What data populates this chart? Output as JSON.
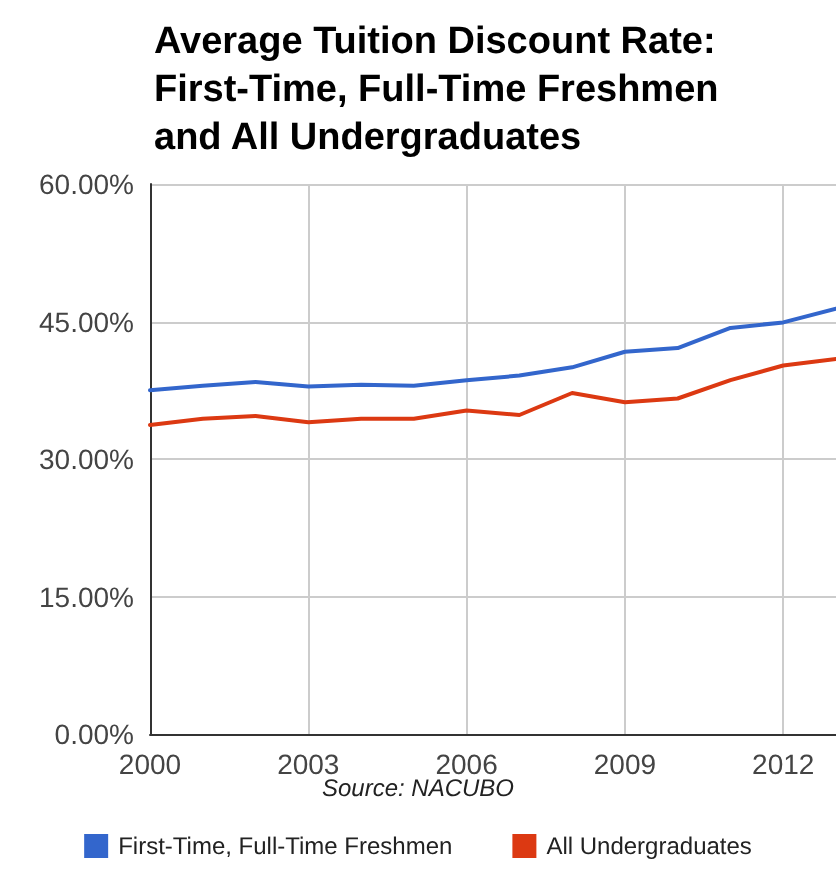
{
  "chart_data": {
    "type": "line",
    "title": "Average Tuition Discount Rate:\nFirst-Time, Full-Time Freshmen\nand All Undergraduates",
    "x": [
      2000,
      2001,
      2002,
      2003,
      2004,
      2005,
      2006,
      2007,
      2008,
      2009,
      2010,
      2011,
      2012,
      2013
    ],
    "series": [
      {
        "name": "First-Time, Full-Time Freshmen",
        "color": "#3366cc",
        "values": [
          37.5,
          38.0,
          38.4,
          37.9,
          38.1,
          38.0,
          38.6,
          39.1,
          40.0,
          41.7,
          42.1,
          44.3,
          44.9,
          46.4
        ]
      },
      {
        "name": "All Undergraduates",
        "color": "#dc3912",
        "values": [
          33.7,
          34.4,
          34.7,
          34.0,
          34.4,
          34.4,
          35.3,
          34.8,
          37.2,
          36.2,
          36.6,
          38.6,
          40.2,
          40.9
        ]
      }
    ],
    "xlim": [
      2000,
      2013
    ],
    "xticks": [
      2000,
      2003,
      2006,
      2009,
      2012
    ],
    "ylim": [
      0,
      60
    ],
    "yticks": [
      {
        "value": 0,
        "label": "0.00%"
      },
      {
        "value": 15,
        "label": "15.00%"
      },
      {
        "value": 30,
        "label": "30.00%"
      },
      {
        "value": 45,
        "label": "45.00%"
      },
      {
        "value": 60,
        "label": "60.00%"
      }
    ],
    "annotations": [
      "Source: NACUBO"
    ],
    "grid": true,
    "legend": "bottom",
    "marker": "none",
    "line_style": "solid"
  }
}
